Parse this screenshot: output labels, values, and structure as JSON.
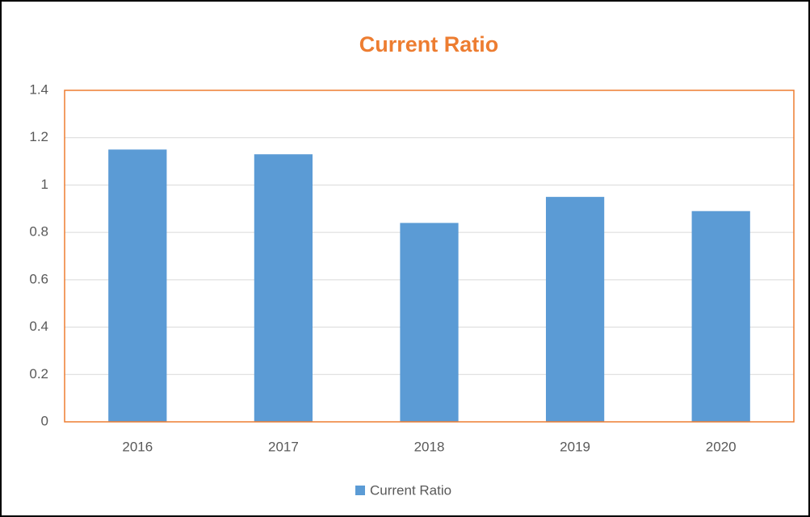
{
  "chart_data": {
    "type": "bar",
    "title": "Current Ratio",
    "categories": [
      "2016",
      "2017",
      "2018",
      "2019",
      "2020"
    ],
    "series": [
      {
        "name": "Current Ratio",
        "color": "#5b9bd5",
        "values": [
          1.15,
          1.13,
          0.84,
          0.95,
          0.89
        ]
      }
    ],
    "ylim": [
      0,
      1.4
    ],
    "yticks": [
      0,
      0.2,
      0.4,
      0.6,
      0.8,
      1,
      1.2,
      1.4
    ],
    "grid": true,
    "legend": "bottom",
    "title_color": "#ed7d31",
    "frame_color": "#ed7d31"
  }
}
